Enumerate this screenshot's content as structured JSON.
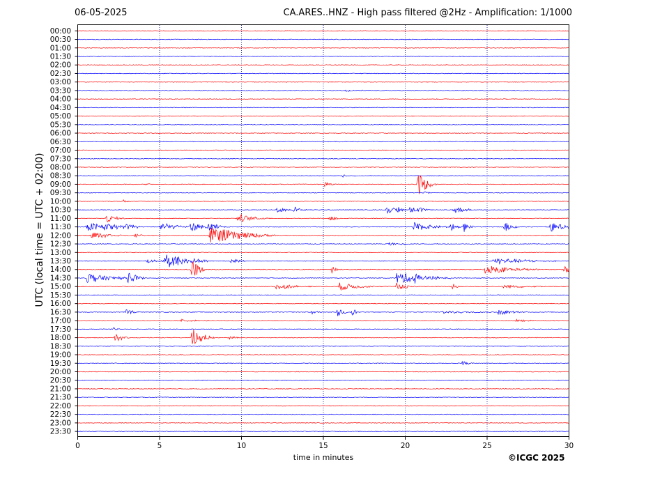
{
  "header": {
    "date": "06-05-2025",
    "title": "CA.ARES..HNZ - High pass filtered @2Hz - Amplification: 1/1000"
  },
  "footer": {
    "copyright": "©ICGC 2025"
  },
  "colors": {
    "even_trace": "#ff0000",
    "odd_trace": "#0000ff",
    "grid": "#000080"
  },
  "chart_data": {
    "type": "line",
    "subtype": "seismic helicorder",
    "xlabel": "time in minutes",
    "ylabel": "UTC (local time = UTC + 02:00)",
    "xlim": [
      0,
      30
    ],
    "x_ticks": [
      0,
      5,
      10,
      15,
      20,
      25,
      30
    ],
    "grid": "vertical dotted at 5, 10, 15, 20, 25",
    "rows": [
      "00:00",
      "00:30",
      "01:00",
      "01:30",
      "02:00",
      "02:30",
      "03:00",
      "03:30",
      "04:00",
      "04:30",
      "05:00",
      "05:30",
      "06:00",
      "06:30",
      "07:00",
      "07:30",
      "08:00",
      "08:30",
      "09:00",
      "09:30",
      "10:00",
      "10:30",
      "11:00",
      "11:30",
      "12:00",
      "12:30",
      "13:00",
      "13:30",
      "14:00",
      "14:30",
      "15:00",
      "15:30",
      "16:00",
      "16:30",
      "17:00",
      "17:30",
      "18:00",
      "18:30",
      "19:00",
      "19:30",
      "20:00",
      "20:30",
      "21:00",
      "21:30",
      "22:00",
      "22:30",
      "23:00",
      "23:30"
    ],
    "events": [
      {
        "row": 7,
        "minute": 16.4,
        "amp": 2,
        "dur": 0.6
      },
      {
        "row": 17,
        "minute": 16.2,
        "amp": 2,
        "dur": 0.4
      },
      {
        "row": 18,
        "minute": 4.2,
        "amp": 2,
        "dur": 0.3
      },
      {
        "row": 18,
        "minute": 15.1,
        "amp": 4,
        "dur": 0.3
      },
      {
        "row": 18,
        "minute": 20.8,
        "amp": 18,
        "dur": 0.5
      },
      {
        "row": 19,
        "minute": 21.2,
        "amp": 2,
        "dur": 0.3
      },
      {
        "row": 20,
        "minute": 2.8,
        "amp": 2,
        "dur": 0.2
      },
      {
        "row": 21,
        "minute": 12.2,
        "amp": 5,
        "dur": 0.4
      },
      {
        "row": 21,
        "minute": 13.2,
        "amp": 5,
        "dur": 0.4
      },
      {
        "row": 21,
        "minute": 18.9,
        "amp": 5,
        "dur": 0.5
      },
      {
        "row": 21,
        "minute": 19.5,
        "amp": 5,
        "dur": 0.3
      },
      {
        "row": 21,
        "minute": 20.3,
        "amp": 5,
        "dur": 0.4
      },
      {
        "row": 21,
        "minute": 20.8,
        "amp": 5,
        "dur": 0.3
      },
      {
        "row": 21,
        "minute": 23.0,
        "amp": 7,
        "dur": 0.5
      },
      {
        "row": 22,
        "minute": 1.8,
        "amp": 6,
        "dur": 0.5
      },
      {
        "row": 22,
        "minute": 9.8,
        "amp": 7,
        "dur": 0.8
      },
      {
        "row": 22,
        "minute": 15.4,
        "amp": 6,
        "dur": 0.3
      },
      {
        "row": 23,
        "minute": 0.6,
        "amp": 7,
        "dur": 1.2
      },
      {
        "row": 23,
        "minute": 1.6,
        "amp": 7,
        "dur": 1.0
      },
      {
        "row": 23,
        "minute": 3.0,
        "amp": 6,
        "dur": 0.3
      },
      {
        "row": 23,
        "minute": 5.1,
        "amp": 7,
        "dur": 0.8
      },
      {
        "row": 23,
        "minute": 6.9,
        "amp": 7,
        "dur": 1.0
      },
      {
        "row": 23,
        "minute": 8.0,
        "amp": 7,
        "dur": 0.4
      },
      {
        "row": 23,
        "minute": 20.5,
        "amp": 7,
        "dur": 1.0
      },
      {
        "row": 23,
        "minute": 22.8,
        "amp": 6,
        "dur": 0.3
      },
      {
        "row": 23,
        "minute": 23.6,
        "amp": 7,
        "dur": 0.3
      },
      {
        "row": 23,
        "minute": 26.1,
        "amp": 7,
        "dur": 0.4
      },
      {
        "row": 23,
        "minute": 28.9,
        "amp": 7,
        "dur": 0.8
      },
      {
        "row": 24,
        "minute": 0.9,
        "amp": 7,
        "dur": 0.8
      },
      {
        "row": 24,
        "minute": 8.1,
        "amp": 13,
        "dur": 1.8
      },
      {
        "row": 24,
        "minute": 3.5,
        "amp": 3,
        "dur": 0.3
      },
      {
        "row": 25,
        "minute": 19.0,
        "amp": 2,
        "dur": 1.0
      },
      {
        "row": 27,
        "minute": 5.3,
        "amp": 14,
        "dur": 1.2
      },
      {
        "row": 27,
        "minute": 4.2,
        "amp": 3,
        "dur": 0.8
      },
      {
        "row": 27,
        "minute": 9.4,
        "amp": 4,
        "dur": 0.4
      },
      {
        "row": 27,
        "minute": 25.4,
        "amp": 5,
        "dur": 1.8
      },
      {
        "row": 28,
        "minute": 7.0,
        "amp": 16,
        "dur": 0.4
      },
      {
        "row": 28,
        "minute": 15.5,
        "amp": 6,
        "dur": 0.3
      },
      {
        "row": 28,
        "minute": 24.9,
        "amp": 7,
        "dur": 1.5
      },
      {
        "row": 28,
        "minute": 29.7,
        "amp": 6,
        "dur": 0.4
      },
      {
        "row": 29,
        "minute": 0.6,
        "amp": 8,
        "dur": 1.2
      },
      {
        "row": 29,
        "minute": 3.1,
        "amp": 9,
        "dur": 0.5
      },
      {
        "row": 29,
        "minute": 19.5,
        "amp": 9,
        "dur": 1.5
      },
      {
        "row": 29,
        "minute": 20.6,
        "amp": 4,
        "dur": 0.4
      },
      {
        "row": 30,
        "minute": 12.1,
        "amp": 5,
        "dur": 1.0
      },
      {
        "row": 30,
        "minute": 16.0,
        "amp": 6,
        "dur": 1.0
      },
      {
        "row": 30,
        "minute": 19.5,
        "amp": 6,
        "dur": 0.6
      },
      {
        "row": 30,
        "minute": 22.9,
        "amp": 6,
        "dur": 0.2
      },
      {
        "row": 30,
        "minute": 26.0,
        "amp": 3,
        "dur": 1.2
      },
      {
        "row": 33,
        "minute": 3.0,
        "amp": 5,
        "dur": 0.4
      },
      {
        "row": 33,
        "minute": 14.3,
        "amp": 3,
        "dur": 0.3
      },
      {
        "row": 33,
        "minute": 15.9,
        "amp": 8,
        "dur": 0.3
      },
      {
        "row": 33,
        "minute": 16.8,
        "amp": 7,
        "dur": 0.2
      },
      {
        "row": 33,
        "minute": 22.3,
        "amp": 2,
        "dur": 2.0
      },
      {
        "row": 33,
        "minute": 25.7,
        "amp": 4,
        "dur": 0.8
      },
      {
        "row": 34,
        "minute": 6.3,
        "amp": 2,
        "dur": 1.0
      },
      {
        "row": 34,
        "minute": 26.8,
        "amp": 2,
        "dur": 0.8
      },
      {
        "row": 35,
        "minute": 2.2,
        "amp": 2,
        "dur": 0.2
      },
      {
        "row": 36,
        "minute": 7.0,
        "amp": 14,
        "dur": 0.6
      },
      {
        "row": 36,
        "minute": 2.3,
        "amp": 7,
        "dur": 0.4
      },
      {
        "row": 36,
        "minute": 7.4,
        "amp": 8,
        "dur": 0.3
      },
      {
        "row": 36,
        "minute": 9.3,
        "amp": 2,
        "dur": 0.3
      },
      {
        "row": 39,
        "minute": 23.5,
        "amp": 4,
        "dur": 0.3
      }
    ]
  }
}
